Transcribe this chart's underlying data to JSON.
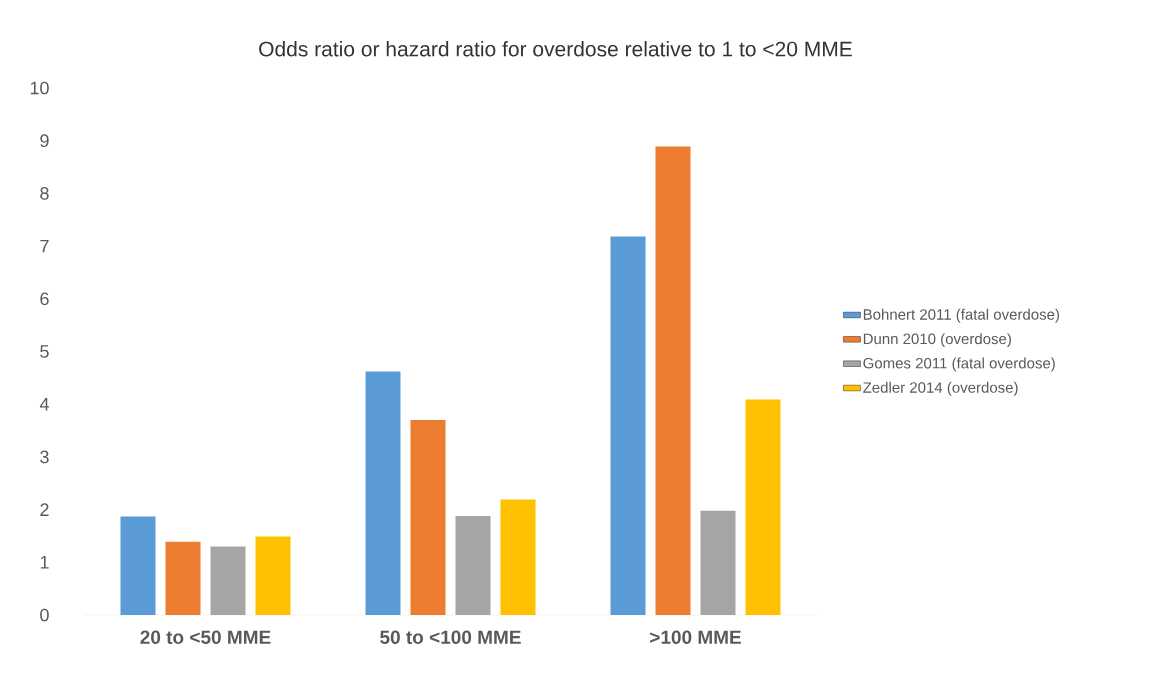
{
  "chart_data": {
    "type": "bar",
    "title": "Odds ratio or hazard ratio for overdose relative to 1 to <20 MME",
    "categories": [
      "20 to <50 MME",
      "50 to <100 MME",
      ">100 MME"
    ],
    "series": [
      {
        "name": "Bohnert 2011 (fatal overdose)",
        "color": "#5b9bd5",
        "values": [
          1.87,
          4.62,
          7.18
        ]
      },
      {
        "name": "Dunn 2010 (overdose)",
        "color": "#ed7d31",
        "values": [
          1.39,
          3.7,
          8.89
        ]
      },
      {
        "name": "Gomes 2011 (fatal overdose)",
        "color": "#a5a5a5",
        "values": [
          1.3,
          1.88,
          1.98
        ]
      },
      {
        "name": "Zedler 2014 (overdose)",
        "color": "#ffc000",
        "values": [
          1.49,
          2.19,
          4.09
        ]
      }
    ],
    "ylim": [
      0,
      10
    ],
    "yticks": [
      0,
      1,
      2,
      3,
      4,
      5,
      6,
      7,
      8,
      9,
      10
    ],
    "legend": "right"
  }
}
